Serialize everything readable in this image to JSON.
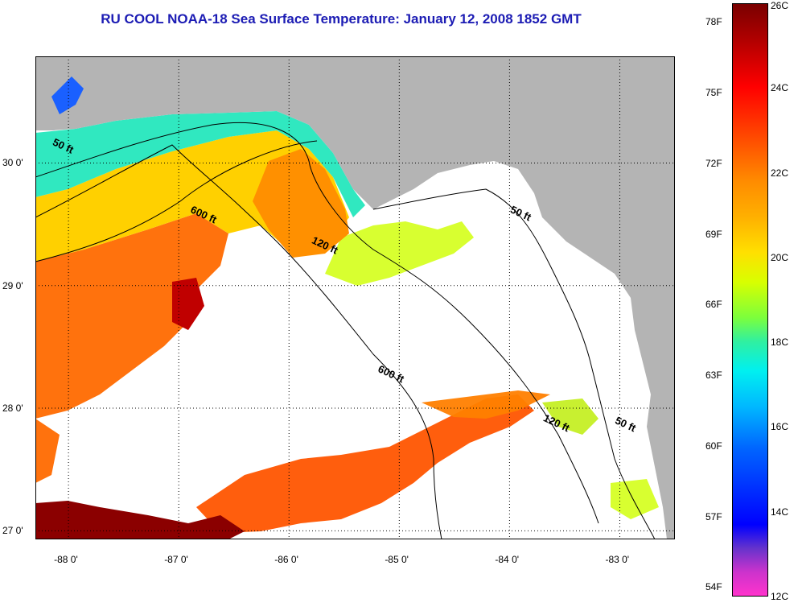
{
  "title": "RU COOL  NOAA-18  Sea Surface Temperature:  January 12, 2008 1852 GMT",
  "map": {
    "lon_range": [
      -88.3,
      -82.5
    ],
    "lat_range": [
      26.93,
      30.87
    ],
    "longitude_ticks": [
      {
        "value": -88,
        "label": "-88 0'"
      },
      {
        "value": -87,
        "label": "-87 0'"
      },
      {
        "value": -86,
        "label": "-86 0'"
      },
      {
        "value": -85,
        "label": "-85 0'"
      },
      {
        "value": -84,
        "label": "-84 0'"
      },
      {
        "value": -83,
        "label": "-83 0'"
      }
    ],
    "latitude_ticks": [
      {
        "value": 30,
        "label": "30 0'"
      },
      {
        "value": 29,
        "label": "29 0'"
      },
      {
        "value": 28,
        "label": "28 0'"
      },
      {
        "value": 27,
        "label": "27 0'"
      }
    ],
    "contour_labels": [
      {
        "text": "50 ft",
        "lon": -88.15,
        "lat": 30.15
      },
      {
        "text": "600 ft",
        "lon": -86.9,
        "lat": 29.6
      },
      {
        "text": "120 ft",
        "lon": -85.8,
        "lat": 29.35
      },
      {
        "text": "50 ft",
        "lon": -84.0,
        "lat": 29.6
      },
      {
        "text": "600 ft",
        "lon": -85.2,
        "lat": 28.3
      },
      {
        "text": "120 ft",
        "lon": -83.7,
        "lat": 27.9
      },
      {
        "text": "50 ft",
        "lon": -83.05,
        "lat": 27.88
      }
    ],
    "colors": {
      "land": "#b4b4b4",
      "cloud": "#ffffff",
      "warm": "#ff6a00",
      "hot": "#8b0000",
      "mild": "#ffd000",
      "cool": "#00d8ff",
      "cold": "#1a60ff"
    }
  },
  "colorbar": {
    "celsius": [
      {
        "value": 26,
        "label": "26C"
      },
      {
        "value": 24,
        "label": "24C"
      },
      {
        "value": 22,
        "label": "22C"
      },
      {
        "value": 20,
        "label": "20C"
      },
      {
        "value": 18,
        "label": "18C"
      },
      {
        "value": 16,
        "label": "16C"
      },
      {
        "value": 14,
        "label": "14C"
      },
      {
        "value": 12,
        "label": "12C"
      }
    ],
    "fahrenheit": [
      {
        "value": 78,
        "label": "78F"
      },
      {
        "value": 75,
        "label": "75F"
      },
      {
        "value": 72,
        "label": "72F"
      },
      {
        "value": 69,
        "label": "69F"
      },
      {
        "value": 66,
        "label": "66F"
      },
      {
        "value": 63,
        "label": "63F"
      },
      {
        "value": 60,
        "label": "60F"
      },
      {
        "value": 57,
        "label": "57F"
      },
      {
        "value": 54,
        "label": "54F"
      }
    ]
  }
}
